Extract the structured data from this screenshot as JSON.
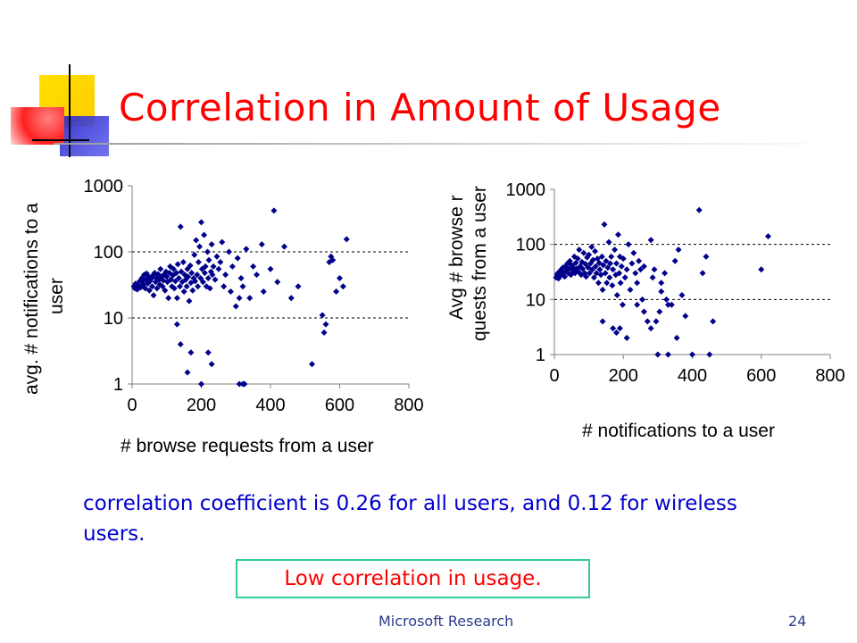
{
  "slide": {
    "title": "Correlation in Amount of Usage",
    "caption": "correlation coefficient is 0.26 for all users, and 0.12 for wireless users.",
    "callout": "Low correlation in usage.",
    "footer": "Microsoft Research",
    "page_number": "24"
  },
  "colors": {
    "title": "#ff0000",
    "caption": "#0000cc",
    "callout_border": "#33cc99",
    "marker": "#00008b",
    "footer": "#2b3b8a"
  },
  "chart_data": [
    {
      "type": "scatter",
      "title": "",
      "xlabel": "# browse requests from a user",
      "ylabel": "avg. # notifications to a user",
      "xlim": [
        0,
        800
      ],
      "xticks": [
        "0",
        "200",
        "400",
        "600",
        "800"
      ],
      "ylim": [
        1,
        1000
      ],
      "yscale": "log",
      "yticks": [
        "1",
        "10",
        "100",
        "1000"
      ],
      "gridlines": "horizontal dashed at 10 and 100",
      "marker": "diamond",
      "points": [
        [
          5,
          30
        ],
        [
          8,
          28
        ],
        [
          10,
          33
        ],
        [
          15,
          27
        ],
        [
          18,
          31
        ],
        [
          22,
          36
        ],
        [
          25,
          29
        ],
        [
          28,
          40
        ],
        [
          30,
          35
        ],
        [
          32,
          32
        ],
        [
          35,
          45
        ],
        [
          38,
          28
        ],
        [
          40,
          38
        ],
        [
          42,
          47
        ],
        [
          45,
          33
        ],
        [
          48,
          42
        ],
        [
          50,
          26
        ],
        [
          52,
          36
        ],
        [
          55,
          39
        ],
        [
          58,
          30
        ],
        [
          60,
          44
        ],
        [
          62,
          22
        ],
        [
          65,
          48
        ],
        [
          68,
          35
        ],
        [
          70,
          40
        ],
        [
          72,
          28
        ],
        [
          75,
          46
        ],
        [
          78,
          38
        ],
        [
          80,
          32
        ],
        [
          82,
          55
        ],
        [
          85,
          42
        ],
        [
          88,
          30
        ],
        [
          90,
          37
        ],
        [
          92,
          45
        ],
        [
          95,
          26
        ],
        [
          98,
          50
        ],
        [
          100,
          42
        ],
        [
          102,
          35
        ],
        [
          105,
          20
        ],
        [
          108,
          48
        ],
        [
          110,
          60
        ],
        [
          112,
          38
        ],
        [
          115,
          30
        ],
        [
          118,
          44
        ],
        [
          120,
          55
        ],
        [
          122,
          28
        ],
        [
          125,
          36
        ],
        [
          128,
          48
        ],
        [
          130,
          20
        ],
        [
          132,
          65
        ],
        [
          135,
          40
        ],
        [
          138,
          30
        ],
        [
          140,
          240
        ],
        [
          142,
          50
        ],
        [
          145,
          35
        ],
        [
          148,
          70
        ],
        [
          150,
          25
        ],
        [
          152,
          45
        ],
        [
          155,
          38
        ],
        [
          158,
          30
        ],
        [
          160,
          55
        ],
        [
          162,
          42
        ],
        [
          165,
          18
        ],
        [
          168,
          62
        ],
        [
          170,
          34
        ],
        [
          172,
          48
        ],
        [
          175,
          26
        ],
        [
          178,
          40
        ],
        [
          180,
          90
        ],
        [
          182,
          36
        ],
        [
          185,
          150
        ],
        [
          188,
          45
        ],
        [
          190,
          30
        ],
        [
          192,
          70
        ],
        [
          195,
          120
        ],
        [
          198,
          40
        ],
        [
          200,
          280
        ],
        [
          202,
          55
        ],
        [
          205,
          35
        ],
        [
          208,
          180
        ],
        [
          210,
          48
        ],
        [
          212,
          60
        ],
        [
          215,
          30
        ],
        [
          218,
          100
        ],
        [
          220,
          40
        ],
        [
          222,
          75
        ],
        [
          225,
          28
        ],
        [
          228,
          50
        ],
        [
          230,
          130
        ],
        [
          232,
          45
        ],
        [
          235,
          60
        ],
        [
          240,
          38
        ],
        [
          245,
          85
        ],
        [
          250,
          55
        ],
        [
          255,
          70
        ],
        [
          260,
          140
        ],
        [
          265,
          30
        ],
        [
          270,
          45
        ],
        [
          280,
          100
        ],
        [
          285,
          25
        ],
        [
          290,
          60
        ],
        [
          300,
          15
        ],
        [
          305,
          80
        ],
        [
          310,
          20
        ],
        [
          315,
          40
        ],
        [
          320,
          30
        ],
        [
          330,
          110
        ],
        [
          340,
          20
        ],
        [
          350,
          60
        ],
        [
          360,
          45
        ],
        [
          375,
          130
        ],
        [
          380,
          25
        ],
        [
          400,
          55
        ],
        [
          410,
          420
        ],
        [
          420,
          35
        ],
        [
          440,
          120
        ],
        [
          460,
          20
        ],
        [
          480,
          30
        ],
        [
          520,
          2
        ],
        [
          550,
          11
        ],
        [
          555,
          6
        ],
        [
          560,
          8
        ],
        [
          570,
          70
        ],
        [
          575,
          85
        ],
        [
          580,
          75
        ],
        [
          590,
          25
        ],
        [
          600,
          40
        ],
        [
          620,
          155
        ],
        [
          610,
          30
        ],
        [
          130,
          8
        ],
        [
          140,
          4
        ],
        [
          160,
          1.5
        ],
        [
          170,
          3
        ],
        [
          200,
          1
        ],
        [
          220,
          3
        ],
        [
          230,
          2
        ],
        [
          310,
          1
        ],
        [
          320,
          1
        ],
        [
          325,
          1
        ]
      ]
    },
    {
      "type": "scatter",
      "title": "",
      "xlabel": "# notifications to a user",
      "ylabel": "Avg # browse requests from a user",
      "xlim": [
        0,
        800
      ],
      "xticks": [
        "0",
        "200",
        "400",
        "600",
        "800"
      ],
      "ylim": [
        1,
        1000
      ],
      "yscale": "log",
      "yticks": [
        "1",
        "10",
        "100",
        "1000"
      ],
      "gridlines": "horizontal dashed at 10 and 100",
      "marker": "diamond",
      "points": [
        [
          5,
          25
        ],
        [
          8,
          28
        ],
        [
          10,
          30
        ],
        [
          12,
          24
        ],
        [
          15,
          32
        ],
        [
          18,
          27
        ],
        [
          20,
          35
        ],
        [
          22,
          29
        ],
        [
          25,
          38
        ],
        [
          28,
          31
        ],
        [
          30,
          26
        ],
        [
          32,
          40
        ],
        [
          35,
          33
        ],
        [
          38,
          45
        ],
        [
          40,
          30
        ],
        [
          42,
          36
        ],
        [
          45,
          50
        ],
        [
          48,
          28
        ],
        [
          50,
          42
        ],
        [
          52,
          34
        ],
        [
          55,
          38
        ],
        [
          58,
          60
        ],
        [
          60,
          30
        ],
        [
          62,
          46
        ],
        [
          65,
          36
        ],
        [
          68,
          55
        ],
        [
          70,
          32
        ],
        [
          72,
          80
        ],
        [
          75,
          40
        ],
        [
          78,
          28
        ],
        [
          80,
          48
        ],
        [
          82,
          36
        ],
        [
          85,
          70
        ],
        [
          88,
          30
        ],
        [
          90,
          44
        ],
        [
          92,
          26
        ],
        [
          95,
          58
        ],
        [
          98,
          38
        ],
        [
          100,
          65
        ],
        [
          102,
          30
        ],
        [
          105,
          45
        ],
        [
          108,
          90
        ],
        [
          110,
          35
        ],
        [
          112,
          52
        ],
        [
          115,
          25
        ],
        [
          118,
          75
        ],
        [
          120,
          40
        ],
        [
          122,
          30
        ],
        [
          125,
          55
        ],
        [
          128,
          20
        ],
        [
          130,
          46
        ],
        [
          132,
          35
        ],
        [
          135,
          28
        ],
        [
          138,
          60
        ],
        [
          140,
          15
        ],
        [
          142,
          42
        ],
        [
          145,
          230
        ],
        [
          148,
          30
        ],
        [
          150,
          50
        ],
        [
          152,
          20
        ],
        [
          155,
          38
        ],
        [
          158,
          110
        ],
        [
          160,
          25
        ],
        [
          162,
          45
        ],
        [
          165,
          60
        ],
        [
          168,
          18
        ],
        [
          170,
          35
        ],
        [
          175,
          80
        ],
        [
          178,
          28
        ],
        [
          180,
          45
        ],
        [
          182,
          12
        ],
        [
          185,
          150
        ],
        [
          188,
          30
        ],
        [
          190,
          60
        ],
        [
          192,
          20
        ],
        [
          195,
          40
        ],
        [
          198,
          8
        ],
        [
          200,
          55
        ],
        [
          205,
          25
        ],
        [
          210,
          35
        ],
        [
          215,
          100
        ],
        [
          220,
          15
        ],
        [
          225,
          45
        ],
        [
          230,
          70
        ],
        [
          235,
          30
        ],
        [
          240,
          20
        ],
        [
          245,
          50
        ],
        [
          250,
          35
        ],
        [
          255,
          10
        ],
        [
          260,
          40
        ],
        [
          270,
          4
        ],
        [
          280,
          120
        ],
        [
          285,
          25
        ],
        [
          290,
          35
        ],
        [
          295,
          4
        ],
        [
          300,
          1
        ],
        [
          305,
          6
        ],
        [
          310,
          20
        ],
        [
          320,
          30
        ],
        [
          325,
          10
        ],
        [
          330,
          1
        ],
        [
          340,
          8
        ],
        [
          350,
          50
        ],
        [
          355,
          2
        ],
        [
          360,
          80
        ],
        [
          370,
          12
        ],
        [
          380,
          5
        ],
        [
          400,
          1
        ],
        [
          420,
          420
        ],
        [
          430,
          30
        ],
        [
          440,
          60
        ],
        [
          460,
          4
        ],
        [
          450,
          1
        ],
        [
          600,
          35
        ],
        [
          620,
          140
        ],
        [
          170,
          3
        ],
        [
          180,
          2.5
        ],
        [
          190,
          3
        ],
        [
          210,
          2
        ],
        [
          140,
          4
        ],
        [
          240,
          8
        ],
        [
          260,
          6
        ],
        [
          280,
          3
        ],
        [
          310,
          14
        ],
        [
          330,
          8
        ]
      ]
    }
  ]
}
